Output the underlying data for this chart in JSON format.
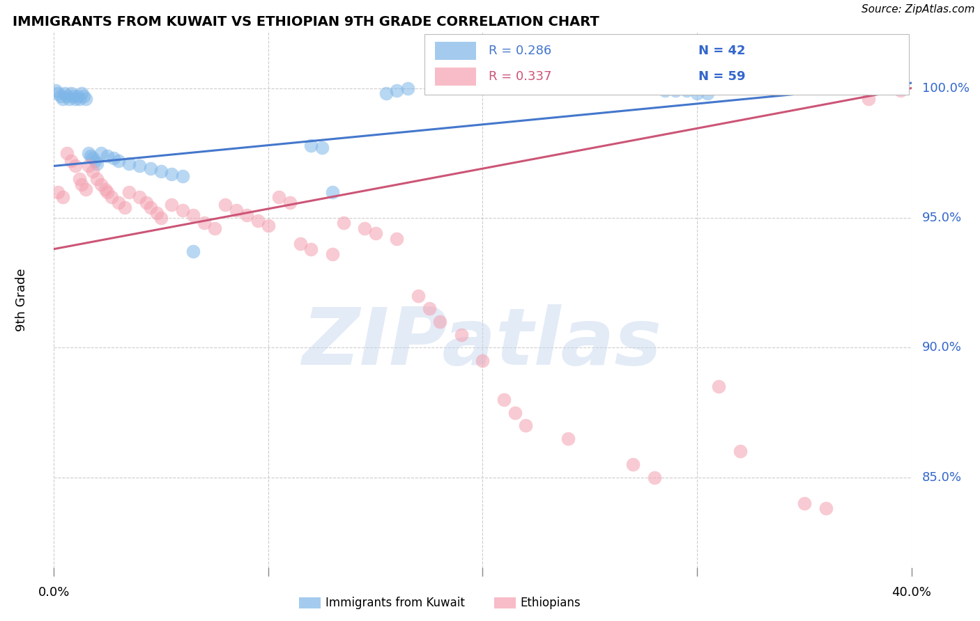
{
  "title": "IMMIGRANTS FROM KUWAIT VS ETHIOPIAN 9TH GRADE CORRELATION CHART",
  "source": "Source: ZipAtlas.com",
  "ylabel": "9th Grade",
  "ytick_labels": [
    "100.0%",
    "95.0%",
    "90.0%",
    "85.0%"
  ],
  "ytick_values": [
    1.0,
    0.95,
    0.9,
    0.85
  ],
  "xmin": 0.0,
  "xmax": 0.4,
  "ymin": 0.815,
  "ymax": 1.022,
  "watermark_text": "ZIPatlas",
  "legend_blue_R": "R = 0.286",
  "legend_blue_N": "N = 42",
  "legend_pink_R": "R = 0.337",
  "legend_pink_N": "N = 59",
  "blue_scatter_color": "#7EB6E8",
  "pink_scatter_color": "#F4A0B0",
  "blue_line_color": "#4477CC",
  "pink_line_color": "#CC5577",
  "grid_color": "#CCCCCC",
  "bg_color": "#FFFFFF",
  "blue_x": [
    0.001,
    0.002,
    0.003,
    0.004,
    0.005,
    0.006,
    0.007,
    0.008,
    0.009,
    0.01,
    0.011,
    0.012,
    0.013,
    0.014,
    0.015,
    0.016,
    0.017,
    0.018,
    0.019,
    0.02,
    0.022,
    0.025,
    0.028,
    0.03,
    0.035,
    0.04,
    0.045,
    0.05,
    0.055,
    0.06,
    0.065,
    0.12,
    0.125,
    0.13,
    0.155,
    0.16,
    0.165,
    0.285,
    0.29,
    0.295,
    0.3,
    0.305
  ],
  "blue_y": [
    0.999,
    0.998,
    0.997,
    0.996,
    0.998,
    0.997,
    0.996,
    0.998,
    0.997,
    0.996,
    0.997,
    0.996,
    0.998,
    0.997,
    0.996,
    0.975,
    0.974,
    0.973,
    0.972,
    0.971,
    0.975,
    0.974,
    0.973,
    0.972,
    0.971,
    0.97,
    0.969,
    0.968,
    0.967,
    0.966,
    0.937,
    0.978,
    0.977,
    0.96,
    0.998,
    0.999,
    1.0,
    0.999,
    0.999,
    0.999,
    0.998,
    0.998
  ],
  "pink_x": [
    0.002,
    0.004,
    0.006,
    0.008,
    0.01,
    0.012,
    0.013,
    0.015,
    0.016,
    0.018,
    0.02,
    0.022,
    0.024,
    0.025,
    0.027,
    0.03,
    0.033,
    0.035,
    0.04,
    0.043,
    0.045,
    0.048,
    0.05,
    0.055,
    0.06,
    0.065,
    0.07,
    0.075,
    0.08,
    0.085,
    0.09,
    0.095,
    0.1,
    0.105,
    0.11,
    0.115,
    0.12,
    0.13,
    0.135,
    0.145,
    0.15,
    0.16,
    0.17,
    0.175,
    0.18,
    0.19,
    0.2,
    0.21,
    0.215,
    0.22,
    0.24,
    0.27,
    0.28,
    0.31,
    0.32,
    0.35,
    0.36,
    0.38,
    0.395
  ],
  "pink_y": [
    0.96,
    0.958,
    0.975,
    0.972,
    0.97,
    0.965,
    0.963,
    0.961,
    0.97,
    0.968,
    0.965,
    0.963,
    0.961,
    0.96,
    0.958,
    0.956,
    0.954,
    0.96,
    0.958,
    0.956,
    0.954,
    0.952,
    0.95,
    0.955,
    0.953,
    0.951,
    0.948,
    0.946,
    0.955,
    0.953,
    0.951,
    0.949,
    0.947,
    0.958,
    0.956,
    0.94,
    0.938,
    0.936,
    0.948,
    0.946,
    0.944,
    0.942,
    0.92,
    0.915,
    0.91,
    0.905,
    0.895,
    0.88,
    0.875,
    0.87,
    0.865,
    0.855,
    0.85,
    0.885,
    0.86,
    0.84,
    0.838,
    0.996,
    0.999
  ],
  "blue_trend_y0": 0.97,
  "blue_trend_y1": 1.002,
  "pink_trend_y0": 0.938,
  "pink_trend_y1": 1.0
}
